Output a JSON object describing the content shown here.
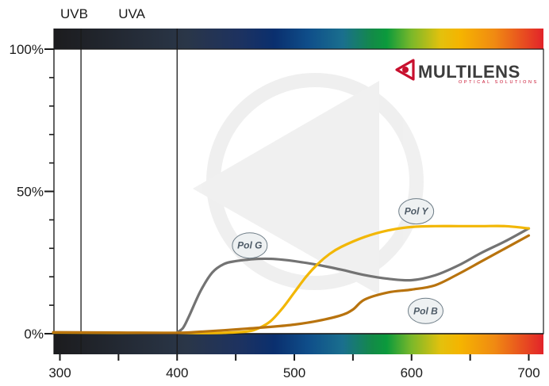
{
  "chart_data": {
    "type": "line",
    "title": "",
    "xlabel": "",
    "ylabel": "",
    "xlim": [
      285,
      705
    ],
    "ylim": [
      0,
      100
    ],
    "x_ticks": [
      300,
      400,
      500,
      600,
      700
    ],
    "x_minor_ticks": [
      350,
      450,
      550,
      650
    ],
    "y_ticks": [
      {
        "value": 0,
        "label": "0%"
      },
      {
        "value": 50,
        "label": "50%"
      },
      {
        "value": 100,
        "label": "100%"
      }
    ],
    "grid": false,
    "bands": [
      {
        "label": "UVB",
        "end": 318
      },
      {
        "label": "UVA",
        "end": 400
      }
    ],
    "series": [
      {
        "name": "Pol G",
        "color": "#737373",
        "label_at": {
          "x": 462,
          "y": 31
        },
        "x": [
          400,
          405,
          410,
          420,
          430,
          440,
          450,
          460,
          470,
          480,
          490,
          500,
          520,
          540,
          560,
          580,
          600,
          620,
          640,
          660,
          680,
          700
        ],
        "y": [
          0.5,
          2.0,
          6.0,
          15.0,
          21.5,
          24.5,
          25.5,
          26.0,
          26.3,
          26.3,
          26.0,
          25.5,
          24.2,
          22.5,
          20.6,
          19.3,
          18.8,
          20.5,
          24.0,
          28.5,
          32.5,
          37.0
        ]
      },
      {
        "name": "Pol Y",
        "color": "#f2b705",
        "label_at": {
          "x": 604,
          "y": 43
        },
        "x": [
          285,
          300,
          350,
          400,
          420,
          440,
          460,
          470,
          480,
          490,
          500,
          510,
          520,
          530,
          540,
          560,
          580,
          600,
          620,
          640,
          660,
          680,
          700
        ],
        "y": [
          0.4,
          0.4,
          0.3,
          0.3,
          0.2,
          0.3,
          0.8,
          2.0,
          4.5,
          9.0,
          14.5,
          20.0,
          24.5,
          28.0,
          30.5,
          34.0,
          36.3,
          37.5,
          37.8,
          37.8,
          37.8,
          37.8,
          37.0
        ]
      },
      {
        "name": "Pol B",
        "color": "#b8730e",
        "label_at": {
          "x": 612,
          "y": 8
        },
        "x": [
          285,
          300,
          350,
          400,
          420,
          440,
          460,
          480,
          500,
          520,
          540,
          550,
          560,
          580,
          600,
          620,
          640,
          660,
          680,
          700
        ],
        "y": [
          0.5,
          0.5,
          0.4,
          0.3,
          0.7,
          1.2,
          1.8,
          2.4,
          3.2,
          4.5,
          6.5,
          8.5,
          12.0,
          14.5,
          15.5,
          17.0,
          21.0,
          25.5,
          30.0,
          34.5
        ]
      }
    ],
    "legend": "none"
  },
  "brand": {
    "name": "MULTILENS",
    "tagline": "OPTICAL SOLUTIONS"
  },
  "colors": {
    "accent": "#c8102e"
  }
}
